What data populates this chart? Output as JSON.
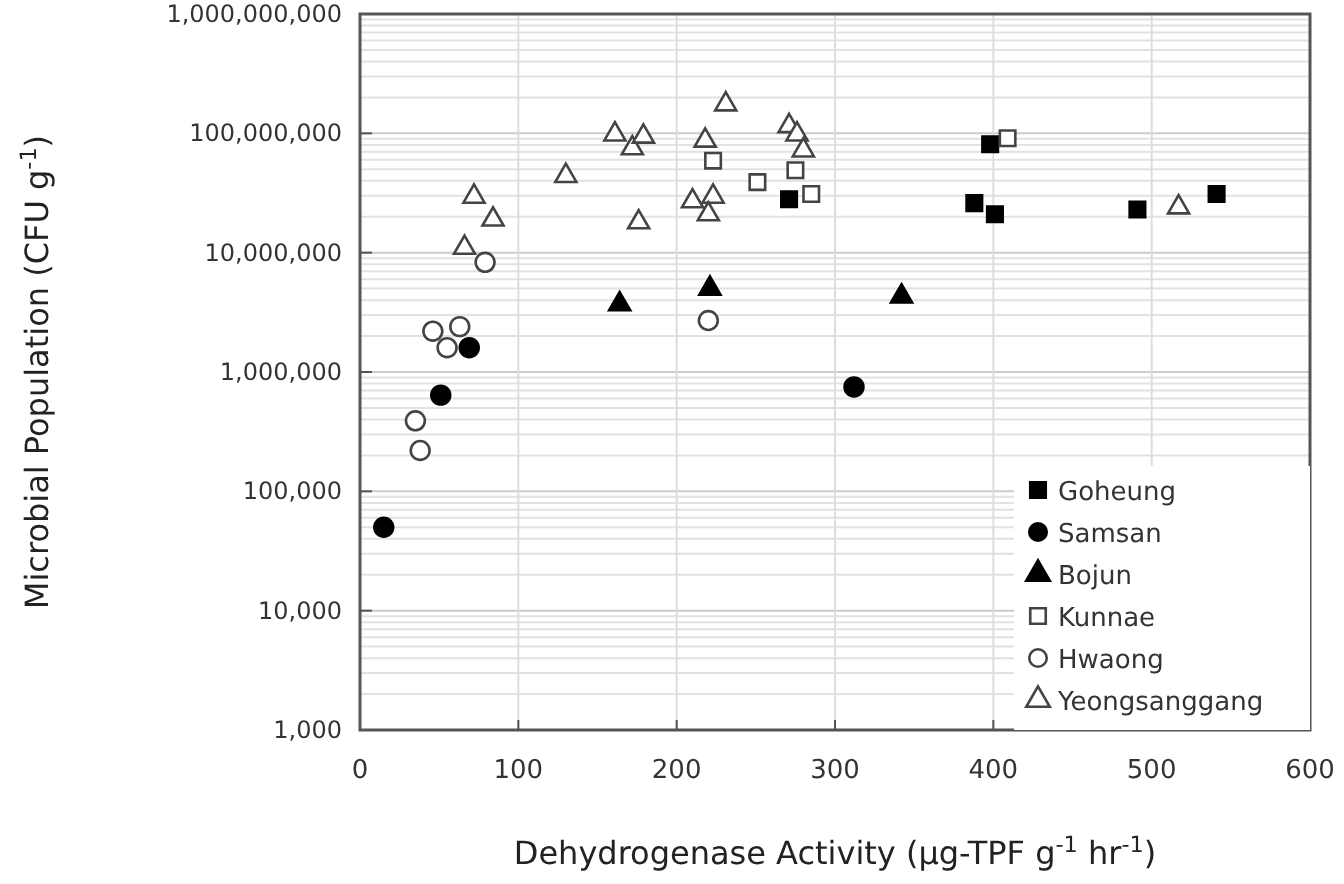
{
  "chart_data": {
    "type": "scatter",
    "xlabel": "Dehydrogenase Activity (µg-TPF g$^{-1}$ hr$^{-1}$)",
    "ylabel": "Microbial Population (CFU g$^{-1}$)",
    "log": "y",
    "grid": true,
    "legend": "bottom right",
    "xlim": [
      0,
      600
    ],
    "xticks": [
      0,
      100,
      200,
      300,
      400,
      500,
      600
    ],
    "ylim": [
      1000,
      1000000000
    ],
    "yticks": [
      {
        "value": 1000,
        "label": "1,000"
      },
      {
        "value": 10000,
        "label": "10,000"
      },
      {
        "value": 100000,
        "label": "100,000"
      },
      {
        "value": 1000000,
        "label": "1,000,000"
      },
      {
        "value": 10000000,
        "label": "10,000,000"
      },
      {
        "value": 100000000,
        "label": "100,000,000"
      },
      {
        "value": 1000000000,
        "label": "1,000,000,000"
      }
    ],
    "series": [
      {
        "name": "Goheung",
        "marker": "square",
        "color": "#000000",
        "x": [
          271,
          398,
          388,
          401,
          491,
          541
        ],
        "values": [
          28000000,
          81000000,
          26000000,
          21000000,
          23000000,
          31000000
        ]
      },
      {
        "name": "Samsan",
        "marker": "circle",
        "color": "#000000",
        "x": [
          15,
          51,
          69,
          312
        ],
        "values": [
          50000,
          640000,
          1600000,
          750000
        ]
      },
      {
        "name": "Bojun",
        "marker": "triangle",
        "color": "#000000",
        "x": [
          164,
          221,
          342
        ],
        "values": [
          3700000,
          5000000,
          4300000
        ]
      },
      {
        "name": "Kunnae",
        "marker": "square",
        "color": "#ffffff",
        "x": [
          223,
          251,
          275,
          285,
          409
        ],
        "values": [
          59000000,
          39000000,
          49000000,
          31000000,
          91000000
        ]
      },
      {
        "name": "Hwaong",
        "marker": "circle",
        "color": "#ffffff",
        "x": [
          79,
          46,
          63,
          55,
          220,
          35,
          38
        ],
        "values": [
          8300000,
          2200000,
          2400000,
          1600000,
          2700000,
          390000,
          220000
        ]
      },
      {
        "name": "Yeongsanggang",
        "marker": "triangle",
        "color": "#ffffff",
        "x": [
          72,
          84,
          66,
          130,
          161,
          172,
          179,
          176,
          218,
          231,
          210,
          223,
          220,
          271,
          276,
          280,
          517
        ],
        "values": [
          29500000,
          19000000,
          11000000,
          44000000,
          98000000,
          75000000,
          94000000,
          18000000,
          87000000,
          175000000,
          27000000,
          29500000,
          21000000,
          115000000,
          98000000,
          72000000,
          24000000
        ]
      }
    ]
  }
}
